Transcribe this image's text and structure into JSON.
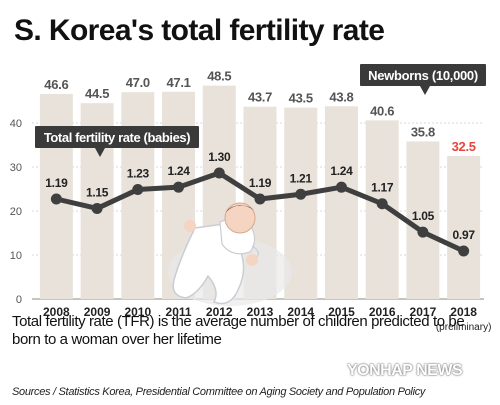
{
  "chart_data": {
    "type": "bar+line",
    "title": "S. Korea's total fertility rate",
    "categories": [
      "2008",
      "2009",
      "2010",
      "2011",
      "2012",
      "2013",
      "2014",
      "2015",
      "2016",
      "2017",
      "2018"
    ],
    "category_notes": {
      "10": "(preliminary)"
    },
    "bar_series": {
      "name": "Newborns (10,000)",
      "values": [
        46.6,
        44.5,
        47.0,
        47.1,
        48.5,
        43.7,
        43.5,
        43.8,
        40.6,
        35.8,
        32.5
      ],
      "labels": [
        "46.6",
        "44.5",
        "47.0",
        "47.1",
        "48.5",
        "43.7",
        "43.5",
        "43.8",
        "40.6",
        "35.8",
        "32.5"
      ],
      "color": "#e8e2da",
      "highlight_color": "#e8453c"
    },
    "line_series": {
      "name": "Total fertility rate (babies)",
      "values": [
        1.19,
        1.15,
        1.23,
        1.24,
        1.3,
        1.19,
        1.21,
        1.24,
        1.17,
        1.05,
        0.97
      ],
      "labels": [
        "1.19",
        "1.15",
        "1.23",
        "1.24",
        "1.30",
        "1.19",
        "1.21",
        "1.24",
        "1.17",
        "1.05",
        "0.97"
      ],
      "color": "#3f3f3f"
    },
    "yaxis": {
      "ticks": [
        "0",
        "10",
        "20",
        "30",
        "40"
      ],
      "ylim": [
        0,
        50
      ]
    },
    "grid": true
  },
  "caption": "Total fertility rate (TFR) is the average number of children predicted to be born to a woman over her lifetime",
  "source": "Sources / Statistics Korea, Presidential Committee on Aging Society and Population Policy",
  "watermark": "YONHAP NEWS",
  "colors": {
    "label_box": "#3a3a3a",
    "text": "#111111",
    "tick": "#555555"
  }
}
